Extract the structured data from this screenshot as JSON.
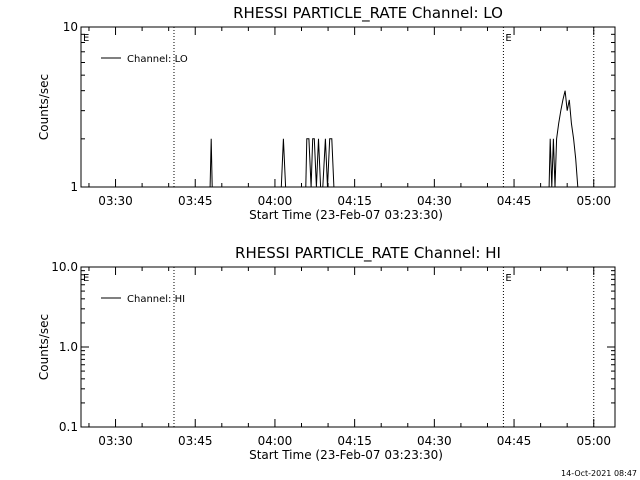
{
  "chart_data": [
    {
      "type": "line",
      "title": "RHESSI PARTICLE_RATE Channel: LO",
      "xlabel": "Start Time (23-Feb-07 03:23:30)",
      "ylabel": "Counts/sec",
      "yscale": "log",
      "ylim": [
        1,
        10
      ],
      "y_ticks": [
        "1",
        "10"
      ],
      "xlim": [
        "03:23:30",
        "05:04:00"
      ],
      "x_ticks": [
        "03:30",
        "03:45",
        "04:00",
        "04:15",
        "04:30",
        "04:45",
        "05:00"
      ],
      "x_tick_minutes": [
        30,
        45,
        60,
        75,
        90,
        105,
        120
      ],
      "grid": false,
      "legend": {
        "entries": [
          "Channel: LO"
        ],
        "placement": "top-left"
      },
      "event_markers": [
        {
          "label": "E",
          "time": "03:23:30"
        },
        {
          "label": "",
          "time": "03:41:00"
        },
        {
          "label": "E",
          "time": "04:43:00"
        },
        {
          "label": "",
          "time": "05:00:00"
        }
      ],
      "series": [
        {
          "name": "Channel: LO",
          "x": [
            23.5,
            47.8,
            48.0,
            48.2,
            61.2,
            61.6,
            62.0,
            65.8,
            66.0,
            66.4,
            66.8,
            67.1,
            67.4,
            67.8,
            68.2,
            68.6,
            69.0,
            69.5,
            69.9,
            70.3,
            70.7,
            71.1,
            71.5,
            111.6,
            111.8,
            112.1,
            112.4,
            112.7,
            113.0,
            113.4,
            113.8,
            114.2,
            114.6,
            115.0,
            115.4,
            115.8,
            116.2,
            116.6,
            117.0,
            117.4
          ],
          "values": [
            1,
            1,
            2,
            1,
            1,
            2,
            1,
            1,
            2,
            2,
            1,
            2,
            2,
            1,
            2,
            1,
            1,
            2,
            1,
            2,
            2,
            1,
            1,
            1,
            2,
            1,
            2,
            1,
            2,
            2.5,
            3,
            3.5,
            4,
            3,
            3.5,
            2.5,
            2,
            1.5,
            1,
            1
          ]
        }
      ]
    },
    {
      "type": "line",
      "title": "RHESSI PARTICLE_RATE Channel: HI",
      "xlabel": "Start Time (23-Feb-07 03:23:30)",
      "ylabel": "Counts/sec",
      "yscale": "log",
      "ylim": [
        0.1,
        10
      ],
      "y_ticks": [
        "0.1",
        "1.0",
        "10.0"
      ],
      "xlim": [
        "03:23:30",
        "05:04:00"
      ],
      "x_ticks": [
        "03:30",
        "03:45",
        "04:00",
        "04:15",
        "04:30",
        "04:45",
        "05:00"
      ],
      "x_tick_minutes": [
        30,
        45,
        60,
        75,
        90,
        105,
        120
      ],
      "grid": false,
      "legend": {
        "entries": [
          "Channel: HI"
        ],
        "placement": "top-left"
      },
      "event_markers": [
        {
          "label": "E",
          "time": "03:23:30"
        },
        {
          "label": "",
          "time": "03:41:00"
        },
        {
          "label": "E",
          "time": "04:43:00"
        },
        {
          "label": "",
          "time": "05:00:00"
        }
      ],
      "series": [
        {
          "name": "Channel: HI",
          "x": [],
          "values": []
        }
      ]
    }
  ],
  "footer": {
    "timestamp": "14-Oct-2021 08:47"
  }
}
